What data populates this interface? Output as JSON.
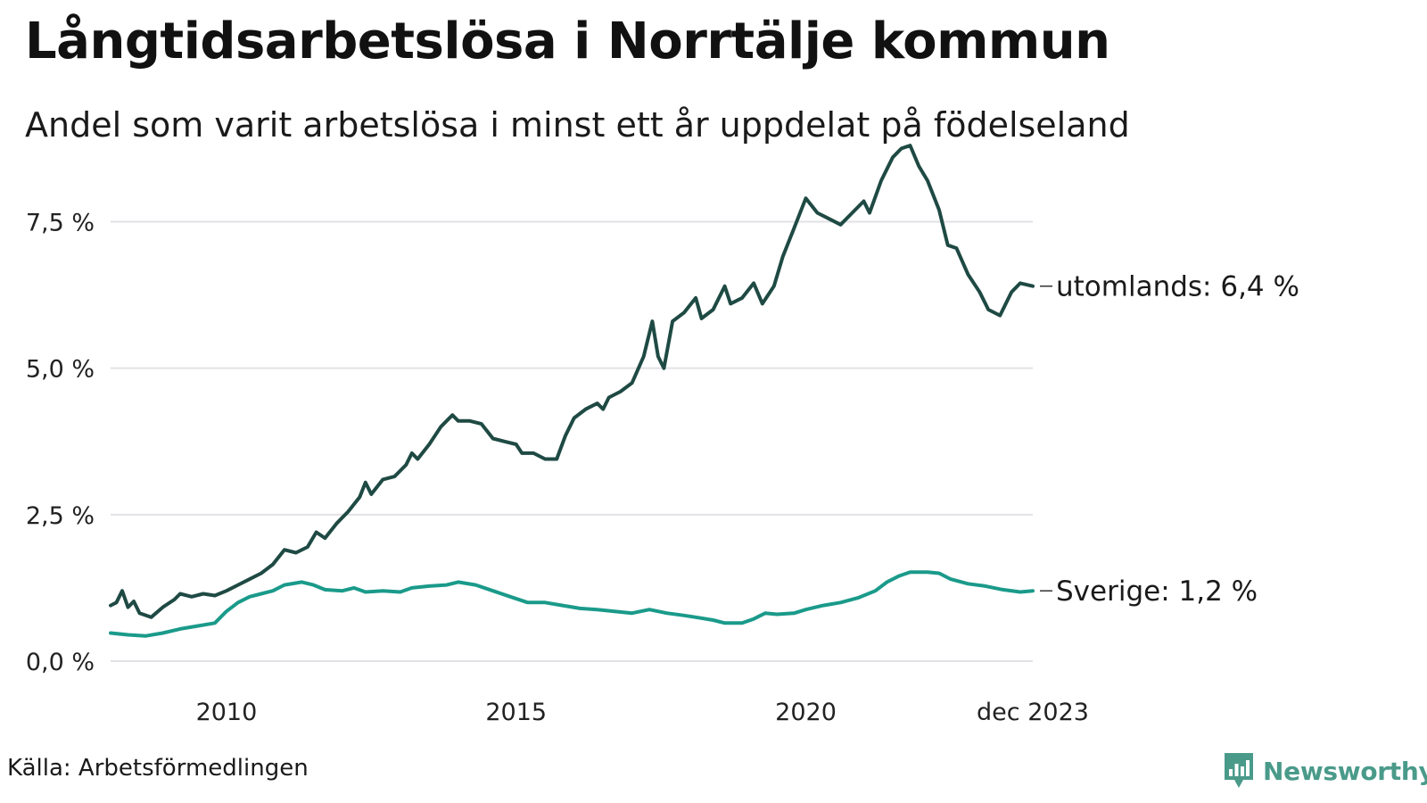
{
  "title": "Långtidsarbetslösa i Norrtälje kommun",
  "subtitle": "Andel som varit arbetslösa i minst ett år uppdelat på födelseland",
  "source": "Källa: Arbetsförmedlingen",
  "logo": {
    "name": "Newsworthy",
    "icon": "newsworthy-chart-icon"
  },
  "colors": {
    "utomlands": "#1f4a44",
    "sverige": "#1a9a8a",
    "grid": "#e2e2e6",
    "logo": "#4a9a8a"
  },
  "chart_data": {
    "type": "line",
    "title": "Långtidsarbetslösa i Norrtälje kommun",
    "xlabel": "",
    "ylabel": "",
    "xlim": [
      2008.0,
      2023.917
    ],
    "ylim": [
      0,
      9.0
    ],
    "x_ticks": [
      {
        "value": 2010,
        "label": "2010"
      },
      {
        "value": 2015,
        "label": "2015"
      },
      {
        "value": 2020,
        "label": "2020"
      },
      {
        "value": 2023.917,
        "label": "dec 2023"
      }
    ],
    "y_ticks": [
      {
        "value": 0,
        "label": "0,0 %"
      },
      {
        "value": 2.5,
        "label": "2,5 %"
      },
      {
        "value": 5.0,
        "label": "5,0 %"
      },
      {
        "value": 7.5,
        "label": "7,5 %"
      }
    ],
    "series": [
      {
        "name": "utomlands",
        "end_label": "utomlands: 6,4 %",
        "points": [
          [
            2008.0,
            0.95
          ],
          [
            2008.1,
            1.0
          ],
          [
            2008.2,
            1.2
          ],
          [
            2008.3,
            0.92
          ],
          [
            2008.4,
            1.02
          ],
          [
            2008.5,
            0.82
          ],
          [
            2008.7,
            0.75
          ],
          [
            2008.9,
            0.92
          ],
          [
            2009.1,
            1.05
          ],
          [
            2009.2,
            1.15
          ],
          [
            2009.4,
            1.1
          ],
          [
            2009.6,
            1.15
          ],
          [
            2009.8,
            1.12
          ],
          [
            2010.0,
            1.2
          ],
          [
            2010.2,
            1.3
          ],
          [
            2010.4,
            1.4
          ],
          [
            2010.6,
            1.5
          ],
          [
            2010.8,
            1.65
          ],
          [
            2011.0,
            1.9
          ],
          [
            2011.2,
            1.85
          ],
          [
            2011.4,
            1.95
          ],
          [
            2011.55,
            2.2
          ],
          [
            2011.7,
            2.1
          ],
          [
            2011.9,
            2.35
          ],
          [
            2012.1,
            2.55
          ],
          [
            2012.3,
            2.8
          ],
          [
            2012.4,
            3.05
          ],
          [
            2012.5,
            2.85
          ],
          [
            2012.7,
            3.1
          ],
          [
            2012.9,
            3.15
          ],
          [
            2013.1,
            3.35
          ],
          [
            2013.2,
            3.55
          ],
          [
            2013.3,
            3.45
          ],
          [
            2013.5,
            3.7
          ],
          [
            2013.7,
            4.0
          ],
          [
            2013.9,
            4.2
          ],
          [
            2014.0,
            4.1
          ],
          [
            2014.2,
            4.1
          ],
          [
            2014.4,
            4.05
          ],
          [
            2014.6,
            3.8
          ],
          [
            2014.8,
            3.75
          ],
          [
            2015.0,
            3.7
          ],
          [
            2015.1,
            3.55
          ],
          [
            2015.3,
            3.55
          ],
          [
            2015.5,
            3.45
          ],
          [
            2015.7,
            3.45
          ],
          [
            2015.85,
            3.85
          ],
          [
            2016.0,
            4.15
          ],
          [
            2016.2,
            4.3
          ],
          [
            2016.4,
            4.4
          ],
          [
            2016.5,
            4.3
          ],
          [
            2016.6,
            4.5
          ],
          [
            2016.8,
            4.6
          ],
          [
            2017.0,
            4.75
          ],
          [
            2017.2,
            5.2
          ],
          [
            2017.35,
            5.8
          ],
          [
            2017.45,
            5.2
          ],
          [
            2017.55,
            5.0
          ],
          [
            2017.7,
            5.8
          ],
          [
            2017.9,
            5.95
          ],
          [
            2018.1,
            6.2
          ],
          [
            2018.2,
            5.85
          ],
          [
            2018.4,
            6.0
          ],
          [
            2018.6,
            6.4
          ],
          [
            2018.7,
            6.1
          ],
          [
            2018.9,
            6.2
          ],
          [
            2019.1,
            6.45
          ],
          [
            2019.25,
            6.1
          ],
          [
            2019.45,
            6.4
          ],
          [
            2019.6,
            6.9
          ],
          [
            2019.8,
            7.4
          ],
          [
            2020.0,
            7.9
          ],
          [
            2020.2,
            7.65
          ],
          [
            2020.4,
            7.55
          ],
          [
            2020.6,
            7.45
          ],
          [
            2020.8,
            7.65
          ],
          [
            2021.0,
            7.85
          ],
          [
            2021.1,
            7.65
          ],
          [
            2021.3,
            8.2
          ],
          [
            2021.5,
            8.6
          ],
          [
            2021.65,
            8.75
          ],
          [
            2021.8,
            8.8
          ],
          [
            2021.95,
            8.45
          ],
          [
            2022.1,
            8.2
          ],
          [
            2022.3,
            7.7
          ],
          [
            2022.45,
            7.1
          ],
          [
            2022.6,
            7.05
          ],
          [
            2022.8,
            6.6
          ],
          [
            2023.0,
            6.3
          ],
          [
            2023.15,
            6.0
          ],
          [
            2023.35,
            5.9
          ],
          [
            2023.55,
            6.3
          ],
          [
            2023.7,
            6.45
          ],
          [
            2023.917,
            6.4
          ]
        ]
      },
      {
        "name": "Sverige",
        "end_label": "Sverige: 1,2 %",
        "points": [
          [
            2008.0,
            0.48
          ],
          [
            2008.3,
            0.45
          ],
          [
            2008.6,
            0.43
          ],
          [
            2008.9,
            0.48
          ],
          [
            2009.2,
            0.55
          ],
          [
            2009.5,
            0.6
          ],
          [
            2009.8,
            0.65
          ],
          [
            2010.0,
            0.85
          ],
          [
            2010.2,
            1.0
          ],
          [
            2010.4,
            1.1
          ],
          [
            2010.6,
            1.15
          ],
          [
            2010.8,
            1.2
          ],
          [
            2011.0,
            1.3
          ],
          [
            2011.3,
            1.35
          ],
          [
            2011.5,
            1.3
          ],
          [
            2011.7,
            1.22
          ],
          [
            2012.0,
            1.2
          ],
          [
            2012.2,
            1.25
          ],
          [
            2012.4,
            1.18
          ],
          [
            2012.7,
            1.2
          ],
          [
            2013.0,
            1.18
          ],
          [
            2013.2,
            1.25
          ],
          [
            2013.5,
            1.28
          ],
          [
            2013.8,
            1.3
          ],
          [
            2014.0,
            1.35
          ],
          [
            2014.3,
            1.3
          ],
          [
            2014.6,
            1.2
          ],
          [
            2014.9,
            1.1
          ],
          [
            2015.2,
            1.0
          ],
          [
            2015.5,
            1.0
          ],
          [
            2015.8,
            0.95
          ],
          [
            2016.1,
            0.9
          ],
          [
            2016.4,
            0.88
          ],
          [
            2016.7,
            0.85
          ],
          [
            2017.0,
            0.82
          ],
          [
            2017.3,
            0.88
          ],
          [
            2017.6,
            0.82
          ],
          [
            2017.9,
            0.78
          ],
          [
            2018.1,
            0.75
          ],
          [
            2018.4,
            0.7
          ],
          [
            2018.6,
            0.65
          ],
          [
            2018.9,
            0.65
          ],
          [
            2019.1,
            0.72
          ],
          [
            2019.3,
            0.82
          ],
          [
            2019.5,
            0.8
          ],
          [
            2019.8,
            0.82
          ],
          [
            2020.0,
            0.88
          ],
          [
            2020.3,
            0.95
          ],
          [
            2020.6,
            1.0
          ],
          [
            2020.9,
            1.08
          ],
          [
            2021.2,
            1.2
          ],
          [
            2021.4,
            1.35
          ],
          [
            2021.6,
            1.45
          ],
          [
            2021.8,
            1.52
          ],
          [
            2022.1,
            1.52
          ],
          [
            2022.3,
            1.5
          ],
          [
            2022.5,
            1.4
          ],
          [
            2022.8,
            1.32
          ],
          [
            2023.1,
            1.28
          ],
          [
            2023.4,
            1.22
          ],
          [
            2023.7,
            1.18
          ],
          [
            2023.917,
            1.2
          ]
        ]
      }
    ]
  }
}
